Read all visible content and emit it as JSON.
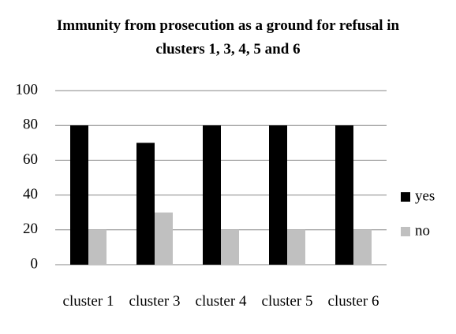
{
  "chart_data": {
    "type": "bar",
    "title": "Immunity from prosecution as a ground for refusal in clusters 1, 3, 4, 5 and 6",
    "categories": [
      "cluster 1",
      "cluster 3",
      "cluster 4",
      "cluster 5",
      "cluster 6"
    ],
    "series": [
      {
        "name": "yes",
        "color": "#000000",
        "values": [
          80,
          70,
          80,
          80,
          80
        ]
      },
      {
        "name": "no",
        "color": "#c0c0c0",
        "values": [
          20,
          30,
          20,
          20,
          20
        ]
      }
    ],
    "ylim": [
      0,
      100
    ],
    "yticks": [
      0,
      20,
      40,
      60,
      80,
      100
    ],
    "grid": true,
    "legend": "right"
  }
}
